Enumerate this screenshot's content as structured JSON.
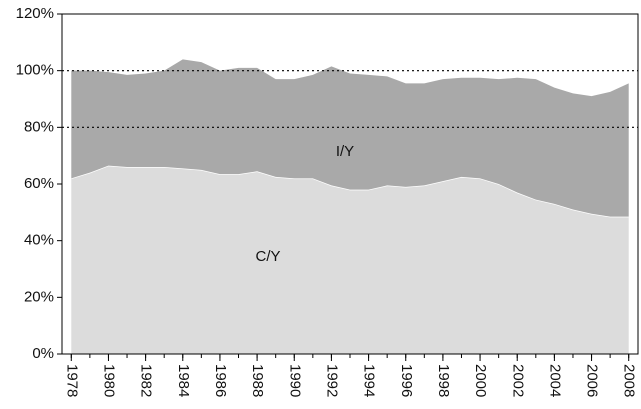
{
  "chart_data": {
    "type": "stacked_area",
    "x": [
      1978,
      1979,
      1980,
      1981,
      1982,
      1983,
      1984,
      1985,
      1986,
      1987,
      1988,
      1989,
      1990,
      1991,
      1992,
      1993,
      1994,
      1995,
      1996,
      1997,
      1998,
      1999,
      2000,
      2001,
      2002,
      2003,
      2004,
      2005,
      2006,
      2007,
      2008
    ],
    "series": [
      {
        "name": "C/Y",
        "color": "#dcdcdc",
        "values": [
          62,
          64,
          66.5,
          66,
          66,
          66,
          65.5,
          65,
          63.5,
          63.5,
          64.5,
          62.5,
          62,
          62,
          59.5,
          58,
          58,
          59.5,
          59,
          59.5,
          61,
          62.5,
          62,
          60,
          57,
          54.5,
          53,
          51,
          49.5,
          48.5,
          48.5
        ]
      },
      {
        "name": "I/Y",
        "color": "#a9a9a9",
        "values": [
          38,
          36,
          33,
          32.5,
          33,
          34,
          38.5,
          38,
          36.5,
          37.5,
          36.5,
          34.5,
          35,
          36.5,
          42,
          41,
          40.5,
          38.5,
          36.5,
          36,
          36,
          35,
          35.5,
          37,
          40.5,
          42.5,
          41,
          41,
          41.5,
          44,
          47
        ]
      }
    ],
    "xlim": [
      1977.5,
      2008.5
    ],
    "xticks": [
      1978,
      1980,
      1982,
      1984,
      1986,
      1988,
      1990,
      1992,
      1994,
      1996,
      1998,
      2000,
      2002,
      2004,
      2006,
      2008
    ],
    "ylim": [
      0,
      120
    ],
    "yticks": [
      {
        "value": 0,
        "label": "0%"
      },
      {
        "value": 20,
        "label": "20%"
      },
      {
        "value": 40,
        "label": "40%"
      },
      {
        "value": 60,
        "label": "60%"
      },
      {
        "value": 80,
        "label": "80%"
      },
      {
        "value": 100,
        "label": "100%"
      },
      {
        "value": 120,
        "label": "120%"
      }
    ],
    "hlines": [
      80,
      100
    ]
  }
}
